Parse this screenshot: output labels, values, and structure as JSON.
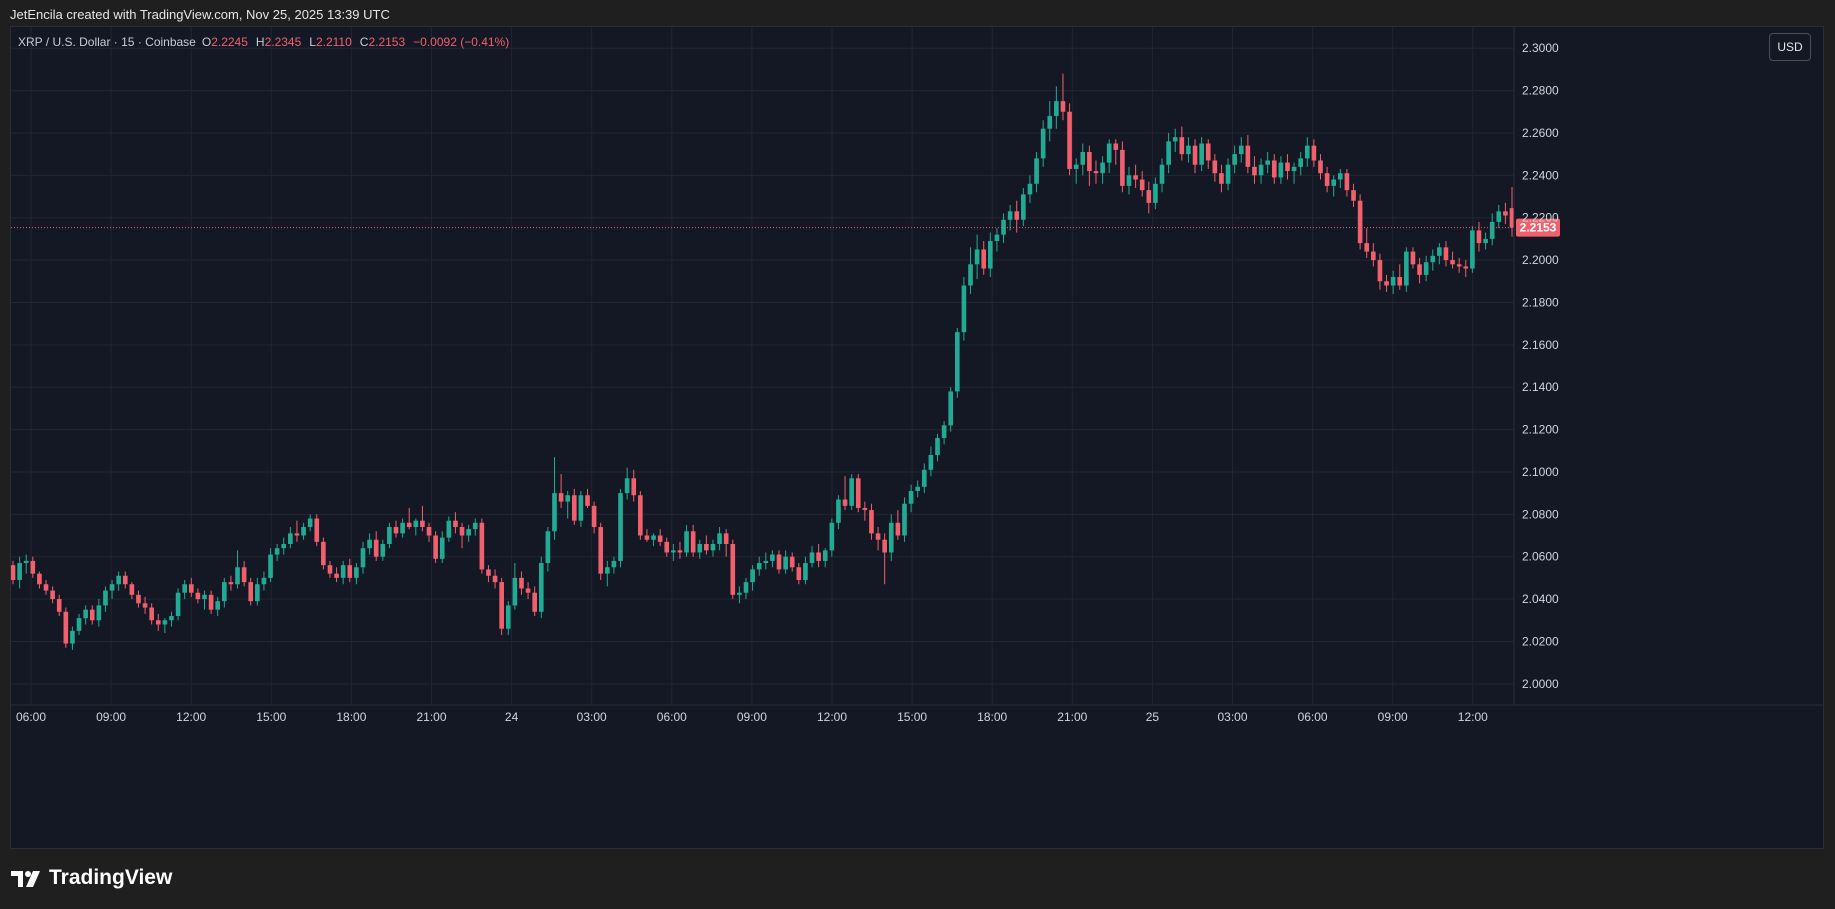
{
  "header": {
    "text": "JetEncila created with TradingView.com, Nov 25, 2025 13:39 UTC"
  },
  "legend": {
    "symbol": "XRP / U.S. Dollar · 15 · Coinbase",
    "open_label": "O",
    "open": "2.2245",
    "high_label": "H",
    "high": "2.2345",
    "low_label": "L",
    "low": "2.2110",
    "close_label": "C",
    "close": "2.2153",
    "change": "−0.0092 (−0.41%)"
  },
  "toolbar": {
    "currency": "USD"
  },
  "brand": {
    "name": "TradingView"
  },
  "colors": {
    "up": "#22ab94",
    "down": "#f0616d",
    "background": "#141824",
    "grid": "#222631",
    "price_line": "#f0616d"
  },
  "chart_data": {
    "type": "candlestick",
    "interval": "15",
    "ylim": [
      1.99,
      2.31
    ],
    "y_ticks": [
      "2.3000",
      "2.2800",
      "2.2600",
      "2.2400",
      "2.2200",
      "2.2000",
      "2.1800",
      "2.1600",
      "2.1400",
      "2.1200",
      "2.1000",
      "2.0800",
      "2.0600",
      "2.0400",
      "2.0200",
      "2.0000"
    ],
    "x_ticks": [
      "06:00",
      "09:00",
      "12:00",
      "15:00",
      "18:00",
      "21:00",
      "24",
      "03:00",
      "06:00",
      "09:00",
      "12:00",
      "15:00",
      "18:00",
      "21:00",
      "25",
      "03:00",
      "06:00",
      "09:00",
      "12:00"
    ],
    "last_price": "2.2153",
    "candles": [
      [
        2.056,
        2.058,
        2.047,
        2.049
      ],
      [
        2.049,
        2.06,
        2.045,
        2.057
      ],
      [
        2.057,
        2.061,
        2.052,
        2.058
      ],
      [
        2.058,
        2.06,
        2.05,
        2.052
      ],
      [
        2.052,
        2.053,
        2.045,
        2.047
      ],
      [
        2.047,
        2.049,
        2.042,
        2.044
      ],
      [
        2.044,
        2.046,
        2.038,
        2.04
      ],
      [
        2.04,
        2.042,
        2.032,
        2.034
      ],
      [
        2.034,
        2.036,
        2.017,
        2.019
      ],
      [
        2.019,
        2.027,
        2.016,
        2.025
      ],
      [
        2.025,
        2.033,
        2.023,
        2.031
      ],
      [
        2.031,
        2.037,
        2.028,
        2.035
      ],
      [
        2.035,
        2.037,
        2.028,
        2.03
      ],
      [
        2.03,
        2.04,
        2.027,
        2.037
      ],
      [
        2.037,
        2.046,
        2.034,
        2.044
      ],
      [
        2.044,
        2.049,
        2.04,
        2.047
      ],
      [
        2.047,
        2.053,
        2.044,
        2.051
      ],
      [
        2.051,
        2.053,
        2.045,
        2.047
      ],
      [
        2.047,
        2.048,
        2.04,
        2.042
      ],
      [
        2.042,
        2.044,
        2.036,
        2.038
      ],
      [
        2.038,
        2.041,
        2.033,
        2.036
      ],
      [
        2.036,
        2.038,
        2.028,
        2.03
      ],
      [
        2.03,
        2.033,
        2.025,
        2.028
      ],
      [
        2.028,
        2.031,
        2.024,
        2.03
      ],
      [
        2.03,
        2.034,
        2.027,
        2.032
      ],
      [
        2.032,
        2.045,
        2.03,
        2.043
      ],
      [
        2.043,
        2.049,
        2.04,
        2.047
      ],
      [
        2.047,
        2.05,
        2.041,
        2.043
      ],
      [
        2.043,
        2.045,
        2.038,
        2.04
      ],
      [
        2.04,
        2.044,
        2.035,
        2.042
      ],
      [
        2.042,
        2.044,
        2.033,
        2.035
      ],
      [
        2.035,
        2.041,
        2.032,
        2.039
      ],
      [
        2.039,
        2.05,
        2.036,
        2.048
      ],
      [
        2.048,
        2.051,
        2.044,
        2.047
      ],
      [
        2.047,
        2.063,
        2.045,
        2.055
      ],
      [
        2.055,
        2.058,
        2.046,
        2.048
      ],
      [
        2.048,
        2.05,
        2.037,
        2.039
      ],
      [
        2.039,
        2.05,
        2.037,
        2.047
      ],
      [
        2.047,
        2.053,
        2.044,
        2.05
      ],
      [
        2.05,
        2.064,
        2.048,
        2.061
      ],
      [
        2.061,
        2.066,
        2.058,
        2.064
      ],
      [
        2.064,
        2.069,
        2.061,
        2.066
      ],
      [
        2.066,
        2.074,
        2.064,
        2.071
      ],
      [
        2.071,
        2.077,
        2.067,
        2.07
      ],
      [
        2.07,
        2.076,
        2.068,
        2.074
      ],
      [
        2.074,
        2.08,
        2.072,
        2.078
      ],
      [
        2.078,
        2.08,
        2.065,
        2.067
      ],
      [
        2.067,
        2.069,
        2.054,
        2.056
      ],
      [
        2.056,
        2.058,
        2.05,
        2.052
      ],
      [
        2.052,
        2.055,
        2.048,
        2.05
      ],
      [
        2.05,
        2.058,
        2.047,
        2.056
      ],
      [
        2.056,
        2.059,
        2.048,
        2.05
      ],
      [
        2.05,
        2.057,
        2.047,
        2.055
      ],
      [
        2.055,
        2.067,
        2.052,
        2.064
      ],
      [
        2.064,
        2.071,
        2.061,
        2.068
      ],
      [
        2.068,
        2.072,
        2.058,
        2.06
      ],
      [
        2.06,
        2.068,
        2.058,
        2.066
      ],
      [
        2.066,
        2.076,
        2.064,
        2.074
      ],
      [
        2.074,
        2.077,
        2.069,
        2.071
      ],
      [
        2.071,
        2.078,
        2.069,
        2.076
      ],
      [
        2.076,
        2.083,
        2.073,
        2.074
      ],
      [
        2.074,
        2.078,
        2.07,
        2.077
      ],
      [
        2.077,
        2.084,
        2.072,
        2.074
      ],
      [
        2.074,
        2.076,
        2.067,
        2.07
      ],
      [
        2.07,
        2.072,
        2.057,
        2.059
      ],
      [
        2.059,
        2.072,
        2.057,
        2.069
      ],
      [
        2.069,
        2.079,
        2.067,
        2.077
      ],
      [
        2.077,
        2.081,
        2.071,
        2.074
      ],
      [
        2.074,
        2.076,
        2.064,
        2.07
      ],
      [
        2.07,
        2.075,
        2.067,
        2.073
      ],
      [
        2.073,
        2.078,
        2.07,
        2.076
      ],
      [
        2.076,
        2.078,
        2.052,
        2.054
      ],
      [
        2.054,
        2.056,
        2.048,
        2.051
      ],
      [
        2.051,
        2.054,
        2.045,
        2.048
      ],
      [
        2.048,
        2.05,
        2.023,
        2.026
      ],
      [
        2.026,
        2.039,
        2.023,
        2.037
      ],
      [
        2.037,
        2.057,
        2.035,
        2.05
      ],
      [
        2.05,
        2.053,
        2.042,
        2.045
      ],
      [
        2.045,
        2.048,
        2.04,
        2.043
      ],
      [
        2.043,
        2.046,
        2.032,
        2.034
      ],
      [
        2.034,
        2.06,
        2.031,
        2.057
      ],
      [
        2.057,
        2.074,
        2.053,
        2.072
      ],
      [
        2.072,
        2.107,
        2.068,
        2.09
      ],
      [
        2.09,
        2.099,
        2.083,
        2.086
      ],
      [
        2.086,
        2.091,
        2.078,
        2.089
      ],
      [
        2.089,
        2.092,
        2.075,
        2.077
      ],
      [
        2.077,
        2.091,
        2.074,
        2.089
      ],
      [
        2.089,
        2.092,
        2.083,
        2.084
      ],
      [
        2.084,
        2.086,
        2.071,
        2.074
      ],
      [
        2.074,
        2.076,
        2.049,
        2.052
      ],
      [
        2.052,
        2.058,
        2.046,
        2.055
      ],
      [
        2.055,
        2.06,
        2.052,
        2.058
      ],
      [
        2.058,
        2.092,
        2.055,
        2.09
      ],
      [
        2.09,
        2.102,
        2.087,
        2.097
      ],
      [
        2.097,
        2.101,
        2.086,
        2.089
      ],
      [
        2.089,
        2.091,
        2.068,
        2.07
      ],
      [
        2.07,
        2.073,
        2.067,
        2.068
      ],
      [
        2.068,
        2.071,
        2.065,
        2.07
      ],
      [
        2.07,
        2.073,
        2.065,
        2.067
      ],
      [
        2.067,
        2.069,
        2.06,
        2.062
      ],
      [
        2.062,
        2.066,
        2.058,
        2.063
      ],
      [
        2.063,
        2.067,
        2.059,
        2.062
      ],
      [
        2.062,
        2.075,
        2.06,
        2.072
      ],
      [
        2.072,
        2.075,
        2.06,
        2.062
      ],
      [
        2.062,
        2.068,
        2.059,
        2.066
      ],
      [
        2.066,
        2.07,
        2.061,
        2.063
      ],
      [
        2.063,
        2.068,
        2.06,
        2.066
      ],
      [
        2.066,
        2.074,
        2.063,
        2.071
      ],
      [
        2.071,
        2.073,
        2.06,
        2.066
      ],
      [
        2.066,
        2.068,
        2.04,
        2.042
      ],
      [
        2.042,
        2.046,
        2.038,
        2.043
      ],
      [
        2.043,
        2.05,
        2.04,
        2.048
      ],
      [
        2.048,
        2.056,
        2.044,
        2.054
      ],
      [
        2.054,
        2.06,
        2.051,
        2.057
      ],
      [
        2.057,
        2.062,
        2.054,
        2.058
      ],
      [
        2.058,
        2.063,
        2.055,
        2.061
      ],
      [
        2.061,
        2.063,
        2.052,
        2.054
      ],
      [
        2.054,
        2.063,
        2.052,
        2.06
      ],
      [
        2.06,
        2.062,
        2.053,
        2.055
      ],
      [
        2.055,
        2.057,
        2.047,
        2.049
      ],
      [
        2.049,
        2.06,
        2.047,
        2.057
      ],
      [
        2.057,
        2.065,
        2.055,
        2.062
      ],
      [
        2.062,
        2.066,
        2.055,
        2.058
      ],
      [
        2.058,
        2.064,
        2.055,
        2.063
      ],
      [
        2.063,
        2.078,
        2.06,
        2.076
      ],
      [
        2.076,
        2.089,
        2.073,
        2.087
      ],
      [
        2.087,
        2.098,
        2.082,
        2.084
      ],
      [
        2.084,
        2.099,
        2.082,
        2.097
      ],
      [
        2.097,
        2.099,
        2.081,
        2.083
      ],
      [
        2.083,
        2.086,
        2.077,
        2.082
      ],
      [
        2.082,
        2.085,
        2.068,
        2.071
      ],
      [
        2.071,
        2.074,
        2.063,
        2.068
      ],
      [
        2.068,
        2.071,
        2.047,
        2.062
      ],
      [
        2.062,
        2.08,
        2.058,
        2.076
      ],
      [
        2.076,
        2.082,
        2.068,
        2.07
      ],
      [
        2.07,
        2.088,
        2.067,
        2.085
      ],
      [
        2.085,
        2.094,
        2.081,
        2.091
      ],
      [
        2.091,
        2.096,
        2.088,
        2.093
      ],
      [
        2.093,
        2.104,
        2.09,
        2.101
      ],
      [
        2.101,
        2.112,
        2.098,
        2.108
      ],
      [
        2.108,
        2.118,
        2.105,
        2.116
      ],
      [
        2.116,
        2.124,
        2.113,
        2.122
      ],
      [
        2.122,
        2.14,
        2.119,
        2.138
      ],
      [
        2.138,
        2.168,
        2.135,
        2.166
      ],
      [
        2.166,
        2.192,
        2.162,
        2.188
      ],
      [
        2.188,
        2.206,
        2.184,
        2.198
      ],
      [
        2.198,
        2.212,
        2.191,
        2.205
      ],
      [
        2.205,
        2.209,
        2.193,
        2.196
      ],
      [
        2.196,
        2.213,
        2.192,
        2.209
      ],
      [
        2.209,
        2.215,
        2.204,
        2.212
      ],
      [
        2.212,
        2.222,
        2.208,
        2.219
      ],
      [
        2.219,
        2.226,
        2.214,
        2.223
      ],
      [
        2.223,
        2.228,
        2.213,
        2.219
      ],
      [
        2.219,
        2.234,
        2.216,
        2.231
      ],
      [
        2.231,
        2.24,
        2.227,
        2.236
      ],
      [
        2.236,
        2.251,
        2.232,
        2.248
      ],
      [
        2.248,
        2.266,
        2.244,
        2.262
      ],
      [
        2.262,
        2.275,
        2.256,
        2.268
      ],
      [
        2.268,
        2.282,
        2.262,
        2.275
      ],
      [
        2.275,
        2.288,
        2.266,
        2.27
      ],
      [
        2.27,
        2.274,
        2.24,
        2.243
      ],
      [
        2.243,
        2.248,
        2.236,
        2.245
      ],
      [
        2.245,
        2.255,
        2.24,
        2.251
      ],
      [
        2.251,
        2.254,
        2.235,
        2.242
      ],
      [
        2.242,
        2.247,
        2.236,
        2.241
      ],
      [
        2.241,
        2.249,
        2.236,
        2.246
      ],
      [
        2.246,
        2.257,
        2.241,
        2.255
      ],
      [
        2.255,
        2.257,
        2.245,
        2.252
      ],
      [
        2.252,
        2.256,
        2.232,
        2.235
      ],
      [
        2.235,
        2.244,
        2.231,
        2.24
      ],
      [
        2.24,
        2.245,
        2.234,
        2.238
      ],
      [
        2.238,
        2.242,
        2.23,
        2.233
      ],
      [
        2.233,
        2.237,
        2.222,
        2.227
      ],
      [
        2.227,
        2.239,
        2.224,
        2.236
      ],
      [
        2.236,
        2.248,
        2.232,
        2.245
      ],
      [
        2.245,
        2.26,
        2.241,
        2.256
      ],
      [
        2.256,
        2.262,
        2.251,
        2.258
      ],
      [
        2.258,
        2.263,
        2.247,
        2.25
      ],
      [
        2.25,
        2.258,
        2.246,
        2.254
      ],
      [
        2.254,
        2.257,
        2.241,
        2.245
      ],
      [
        2.245,
        2.258,
        2.242,
        2.255
      ],
      [
        2.255,
        2.257,
        2.243,
        2.247
      ],
      [
        2.247,
        2.25,
        2.237,
        2.241
      ],
      [
        2.241,
        2.245,
        2.232,
        2.236
      ],
      [
        2.236,
        2.248,
        2.233,
        2.245
      ],
      [
        2.245,
        2.254,
        2.241,
        2.25
      ],
      [
        2.25,
        2.258,
        2.246,
        2.254
      ],
      [
        2.254,
        2.259,
        2.241,
        2.244
      ],
      [
        2.244,
        2.249,
        2.236,
        2.24
      ],
      [
        2.24,
        2.248,
        2.236,
        2.245
      ],
      [
        2.245,
        2.251,
        2.241,
        2.247
      ],
      [
        2.247,
        2.25,
        2.236,
        2.239
      ],
      [
        2.239,
        2.249,
        2.236,
        2.246
      ],
      [
        2.246,
        2.25,
        2.238,
        2.242
      ],
      [
        2.242,
        2.246,
        2.236,
        2.244
      ],
      [
        2.244,
        2.251,
        2.24,
        2.248
      ],
      [
        2.248,
        2.258,
        2.244,
        2.254
      ],
      [
        2.254,
        2.257,
        2.244,
        2.247
      ],
      [
        2.247,
        2.25,
        2.238,
        2.241
      ],
      [
        2.241,
        2.244,
        2.232,
        2.235
      ],
      [
        2.235,
        2.24,
        2.23,
        2.238
      ],
      [
        2.238,
        2.243,
        2.234,
        2.241
      ],
      [
        2.241,
        2.243,
        2.23,
        2.233
      ],
      [
        2.233,
        2.236,
        2.225,
        2.228
      ],
      [
        2.228,
        2.231,
        2.205,
        2.208
      ],
      [
        2.208,
        2.215,
        2.201,
        2.204
      ],
      [
        2.204,
        2.208,
        2.197,
        2.2
      ],
      [
        2.2,
        2.203,
        2.186,
        2.19
      ],
      [
        2.19,
        2.193,
        2.185,
        2.188
      ],
      [
        2.188,
        2.195,
        2.184,
        2.192
      ],
      [
        2.192,
        2.198,
        2.186,
        2.188
      ],
      [
        2.188,
        2.206,
        2.185,
        2.204
      ],
      [
        2.204,
        2.206,
        2.196,
        2.198
      ],
      [
        2.198,
        2.201,
        2.189,
        2.193
      ],
      [
        2.193,
        2.202,
        2.19,
        2.199
      ],
      [
        2.199,
        2.205,
        2.195,
        2.202
      ],
      [
        2.202,
        2.208,
        2.198,
        2.206
      ],
      [
        2.206,
        2.209,
        2.197,
        2.2
      ],
      [
        2.2,
        2.204,
        2.196,
        2.198
      ],
      [
        2.198,
        2.201,
        2.194,
        2.197
      ],
      [
        2.197,
        2.2,
        2.192,
        2.196
      ],
      [
        2.196,
        2.216,
        2.194,
        2.214
      ],
      [
        2.214,
        2.218,
        2.204,
        2.208
      ],
      [
        2.208,
        2.213,
        2.205,
        2.21
      ],
      [
        2.21,
        2.222,
        2.207,
        2.218
      ],
      [
        2.218,
        2.226,
        2.215,
        2.223
      ],
      [
        2.223,
        2.227,
        2.217,
        2.221
      ],
      [
        2.2245,
        2.2345,
        2.211,
        2.2153
      ]
    ]
  }
}
